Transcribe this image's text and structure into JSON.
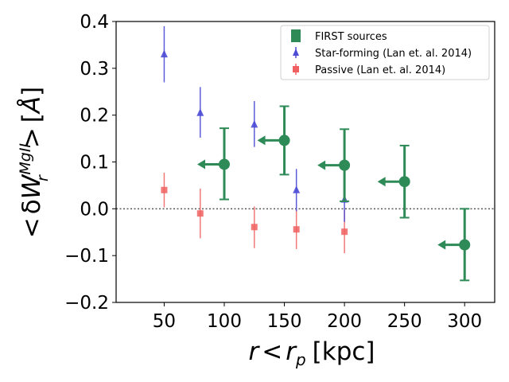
{
  "chart_data": {
    "type": "scatter",
    "title": "",
    "xlabel": "r < r_p [kpc]",
    "ylabel": "< δW_r^{MgII} > [Å]",
    "xlim": [
      10,
      325
    ],
    "ylim": [
      -0.2,
      0.4
    ],
    "xticks": [
      50,
      100,
      150,
      200,
      250,
      300
    ],
    "yticks": [
      -0.2,
      -0.1,
      0.0,
      0.1,
      0.2,
      0.3,
      0.4
    ],
    "xtick_labels": [
      "50",
      "100",
      "150",
      "200",
      "250",
      "300"
    ],
    "ytick_labels": [
      "−0.2",
      "−0.1",
      "0.0",
      "0.1",
      "0.2",
      "0.3",
      "0.4"
    ],
    "reference_line": {
      "y": 0.0,
      "style": "dotted",
      "color": "#555555"
    },
    "legend_position": "top-right",
    "series": [
      {
        "name": "FIRST sources",
        "marker": "circle",
        "color": "#2e8b57",
        "upper_limit_arrows": true,
        "points": [
          {
            "x": 100,
            "y": 0.095,
            "yerr_low": 0.075,
            "yerr_high": 0.077
          },
          {
            "x": 150,
            "y": 0.146,
            "yerr_low": 0.073,
            "yerr_high": 0.073
          },
          {
            "x": 200,
            "y": 0.093,
            "yerr_low": 0.077,
            "yerr_high": 0.077
          },
          {
            "x": 250,
            "y": 0.058,
            "yerr_low": 0.077,
            "yerr_high": 0.077
          },
          {
            "x": 300,
            "y": -0.077,
            "yerr_low": 0.076,
            "yerr_high": 0.077
          }
        ]
      },
      {
        "name": "Star-forming (Lan et. al. 2014)",
        "marker": "triangle",
        "color": "#4b4bd6",
        "points": [
          {
            "x": 50,
            "y": 0.33,
            "yerr_low": 0.06,
            "yerr_high": 0.06
          },
          {
            "x": 80,
            "y": 0.205,
            "yerr_low": 0.053,
            "yerr_high": 0.055
          },
          {
            "x": 125,
            "y": 0.18,
            "yerr_low": 0.048,
            "yerr_high": 0.05
          },
          {
            "x": 160,
            "y": 0.04,
            "yerr_low": 0.045,
            "yerr_high": 0.045
          },
          {
            "x": 200,
            "y": 0.02,
            "yerr_low": 0.048,
            "yerr_high": 0.047
          }
        ]
      },
      {
        "name": "Passive (Lan et. al. 2014)",
        "marker": "square",
        "color": "#f06060",
        "points": [
          {
            "x": 50,
            "y": 0.04,
            "yerr_low": 0.037,
            "yerr_high": 0.037
          },
          {
            "x": 80,
            "y": -0.01,
            "yerr_low": 0.053,
            "yerr_high": 0.053
          },
          {
            "x": 125,
            "y": -0.039,
            "yerr_low": 0.045,
            "yerr_high": 0.044
          },
          {
            "x": 160,
            "y": -0.044,
            "yerr_low": 0.042,
            "yerr_high": 0.042
          },
          {
            "x": 200,
            "y": -0.049,
            "yerr_low": 0.046,
            "yerr_high": 0.046
          }
        ]
      }
    ]
  }
}
